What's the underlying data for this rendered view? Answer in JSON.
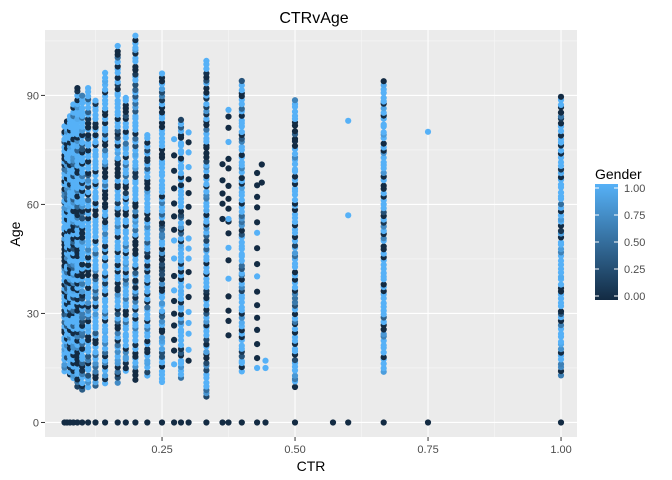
{
  "chart_data": {
    "type": "scatter",
    "title": "CTRvAge",
    "xlabel": "CTR",
    "ylabel": "Age",
    "xlim": [
      0.03,
      1.03
    ],
    "ylim": [
      -4,
      108
    ],
    "xticks": [
      0.25,
      0.5,
      0.75,
      1.0
    ],
    "xtick_labels": [
      "0.25",
      "0.50",
      "0.75",
      "1.00"
    ],
    "yticks": [
      0,
      30,
      60,
      90
    ],
    "ytick_labels": [
      "0",
      "30",
      "60",
      "90"
    ],
    "grid": true,
    "legend": {
      "title": "Gender",
      "position": "right",
      "type": "colorbar",
      "breaks": [
        1.0,
        0.75,
        0.5,
        0.25,
        0.0
      ],
      "labels": [
        "1.00",
        "0.75",
        "0.50",
        "0.25",
        "0.00"
      ],
      "low_color": "#132b43",
      "high_color": "#56b1f7"
    },
    "colors": {
      "low": "#132b43",
      "high": "#56b1f7",
      "panel": "#ebebeb"
    },
    "columns": [
      {
        "x": 0.0667,
        "ymin": 14,
        "ymax": 82,
        "zero": true
      },
      {
        "x": 0.0714,
        "ymin": 18,
        "ymax": 84,
        "zero": true
      },
      {
        "x": 0.0769,
        "ymin": 13,
        "ymax": 85,
        "zero": true
      },
      {
        "x": 0.0833,
        "ymin": 12,
        "ymax": 88,
        "zero": true
      },
      {
        "x": 0.0909,
        "ymin": 10,
        "ymax": 92,
        "zero": true
      },
      {
        "x": 0.1,
        "ymin": 9,
        "ymax": 90,
        "zero": true
      },
      {
        "x": 0.1111,
        "ymin": 10,
        "ymax": 92,
        "zero": true
      },
      {
        "x": 0.125,
        "ymin": 10,
        "ymax": 89,
        "zero": true
      },
      {
        "x": 0.1429,
        "ymin": 11,
        "ymax": 97,
        "zero": true
      },
      {
        "x": 0.1667,
        "ymin": 11,
        "ymax": 104,
        "zero": true
      },
      {
        "x": 0.1818,
        "ymin": 14,
        "ymax": 90,
        "zero": true
      },
      {
        "x": 0.2,
        "ymin": 12,
        "ymax": 107,
        "zero": true
      },
      {
        "x": 0.2222,
        "ymin": 13,
        "ymax": 80,
        "zero": true
      },
      {
        "x": 0.25,
        "ymin": 11,
        "ymax": 97,
        "zero": true
      },
      {
        "x": 0.2857,
        "ymin": 12,
        "ymax": 84,
        "zero": true
      },
      {
        "x": 0.3333,
        "ymin": 7,
        "ymax": 100,
        "zero": true
      },
      {
        "x": 0.4,
        "ymin": 14,
        "ymax": 94,
        "zero": true
      },
      {
        "x": 0.5,
        "ymin": 10,
        "ymax": 89,
        "zero": true
      },
      {
        "x": 0.6667,
        "ymin": 14,
        "ymax": 94,
        "zero": true
      },
      {
        "x": 1.0,
        "ymin": 13,
        "ymax": 90,
        "zero": true
      }
    ],
    "sparse_columns": [
      {
        "x": 0.2727,
        "ymin": 16,
        "ymax": 79
      },
      {
        "x": 0.3,
        "ymin": 20,
        "ymax": 82
      },
      {
        "x": 0.3636,
        "ymin": 56,
        "ymax": 72
      },
      {
        "x": 0.375,
        "ymin": 24,
        "ymax": 86
      },
      {
        "x": 0.4286,
        "ymin": 15,
        "ymax": 71
      }
    ],
    "points": [
      {
        "x": 0.6,
        "y": 83,
        "gender": 1
      },
      {
        "x": 0.6,
        "y": 57,
        "gender": 1
      },
      {
        "x": 0.75,
        "y": 80,
        "gender": 1
      },
      {
        "x": 0.4375,
        "y": 71,
        "gender": 0
      },
      {
        "x": 0.4375,
        "y": 66,
        "gender": 0
      },
      {
        "x": 0.4444,
        "y": 17,
        "gender": 1
      },
      {
        "x": 0.4444,
        "y": 15,
        "gender": 1
      },
      {
        "x": 0.375,
        "y": 56,
        "gender": 1
      },
      {
        "x": 0.375,
        "y": 86,
        "gender": 1
      },
      {
        "x": 0.3,
        "y": 17,
        "gender": 0
      },
      {
        "x": 0.6,
        "y": 0,
        "gender": 0
      },
      {
        "x": 0.75,
        "y": 0,
        "gender": 0
      },
      {
        "x": 0.5714,
        "y": 0,
        "gender": 0
      },
      {
        "x": 0.4286,
        "y": 0,
        "gender": 0
      },
      {
        "x": 0.4444,
        "y": 0,
        "gender": 0
      },
      {
        "x": 0.375,
        "y": 0,
        "gender": 0
      },
      {
        "x": 0.3636,
        "y": 0,
        "gender": 0
      },
      {
        "x": 0.3,
        "y": 0,
        "gender": 0
      },
      {
        "x": 0.2727,
        "y": 0,
        "gender": 0
      }
    ]
  }
}
